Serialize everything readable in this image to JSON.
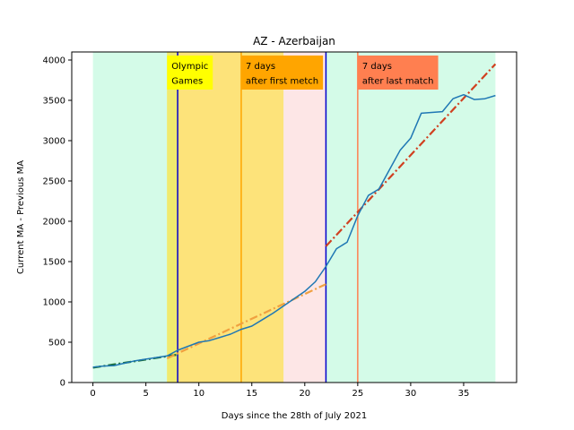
{
  "chart_data": {
    "type": "line",
    "title": "AZ - Azerbaijan",
    "xlabel": "Days since the 28th of July 2021",
    "ylabel": "Current MA - Previous MA",
    "xlim": [
      -2,
      40
    ],
    "ylim": [
      0,
      4100
    ],
    "xticks": [
      0,
      5,
      10,
      15,
      20,
      25,
      30,
      35
    ],
    "yticks": [
      0,
      500,
      1000,
      1500,
      2000,
      2500,
      3000,
      3500,
      4000
    ],
    "grid": false,
    "shaded_regions": [
      {
        "x0": 0,
        "x1": 38,
        "color": "#d4fbe8"
      },
      {
        "x0": 7,
        "x1": 18,
        "color": "#fde37a"
      },
      {
        "x0": 7,
        "x1": 8,
        "color": "#f0ea6e"
      },
      {
        "x0": 18,
        "x1": 22,
        "color": "#fde6e6"
      }
    ],
    "vertical_lines": [
      {
        "x": 8,
        "color": "#0000cc"
      },
      {
        "x": 14,
        "color": "#ffa500"
      },
      {
        "x": 22,
        "color": "#0000cc"
      },
      {
        "x": 25,
        "color": "#ff7f50"
      }
    ],
    "annotations": [
      {
        "x": 7,
        "lines": [
          "Olympic",
          "Games"
        ],
        "bg": "#ffff00"
      },
      {
        "x": 14,
        "lines": [
          "7 days",
          "after first metch"
        ],
        "bg": "#ffa500"
      },
      {
        "x": 25,
        "lines": [
          "7 days",
          "after last match"
        ],
        "bg": "#ff7f50"
      }
    ],
    "series": [
      {
        "type": "line",
        "color": "#1f77b4",
        "x": [
          0,
          1,
          2,
          3,
          4,
          5,
          6,
          7,
          8,
          9,
          10,
          11,
          12,
          13,
          14,
          15,
          16,
          17,
          18,
          19,
          20,
          21,
          22,
          23,
          24,
          25,
          26,
          27,
          28,
          29,
          30,
          31,
          32,
          33,
          34,
          35,
          36,
          37,
          38
        ],
        "y": [
          190,
          205,
          210,
          240,
          270,
          290,
          310,
          330,
          400,
          450,
          500,
          520,
          560,
          600,
          660,
          700,
          780,
          860,
          950,
          1040,
          1130,
          1250,
          1440,
          1660,
          1740,
          2070,
          2320,
          2400,
          2640,
          2880,
          3030,
          3340,
          3350,
          3360,
          3520,
          3570,
          3510,
          3520,
          3560
        ]
      },
      {
        "type": "fit",
        "style": "dashdot",
        "color": "#1a6e35",
        "x": [
          0,
          8
        ],
        "y": [
          185,
          345
        ]
      },
      {
        "type": "fit",
        "style": "dashdot",
        "color": "#f0a040",
        "x": [
          7,
          22
        ],
        "y": [
          300,
          1220
        ]
      },
      {
        "type": "fit",
        "style": "dashdot",
        "color": "#d04020",
        "x": [
          22,
          38
        ],
        "y": [
          1690,
          3950
        ]
      }
    ]
  }
}
